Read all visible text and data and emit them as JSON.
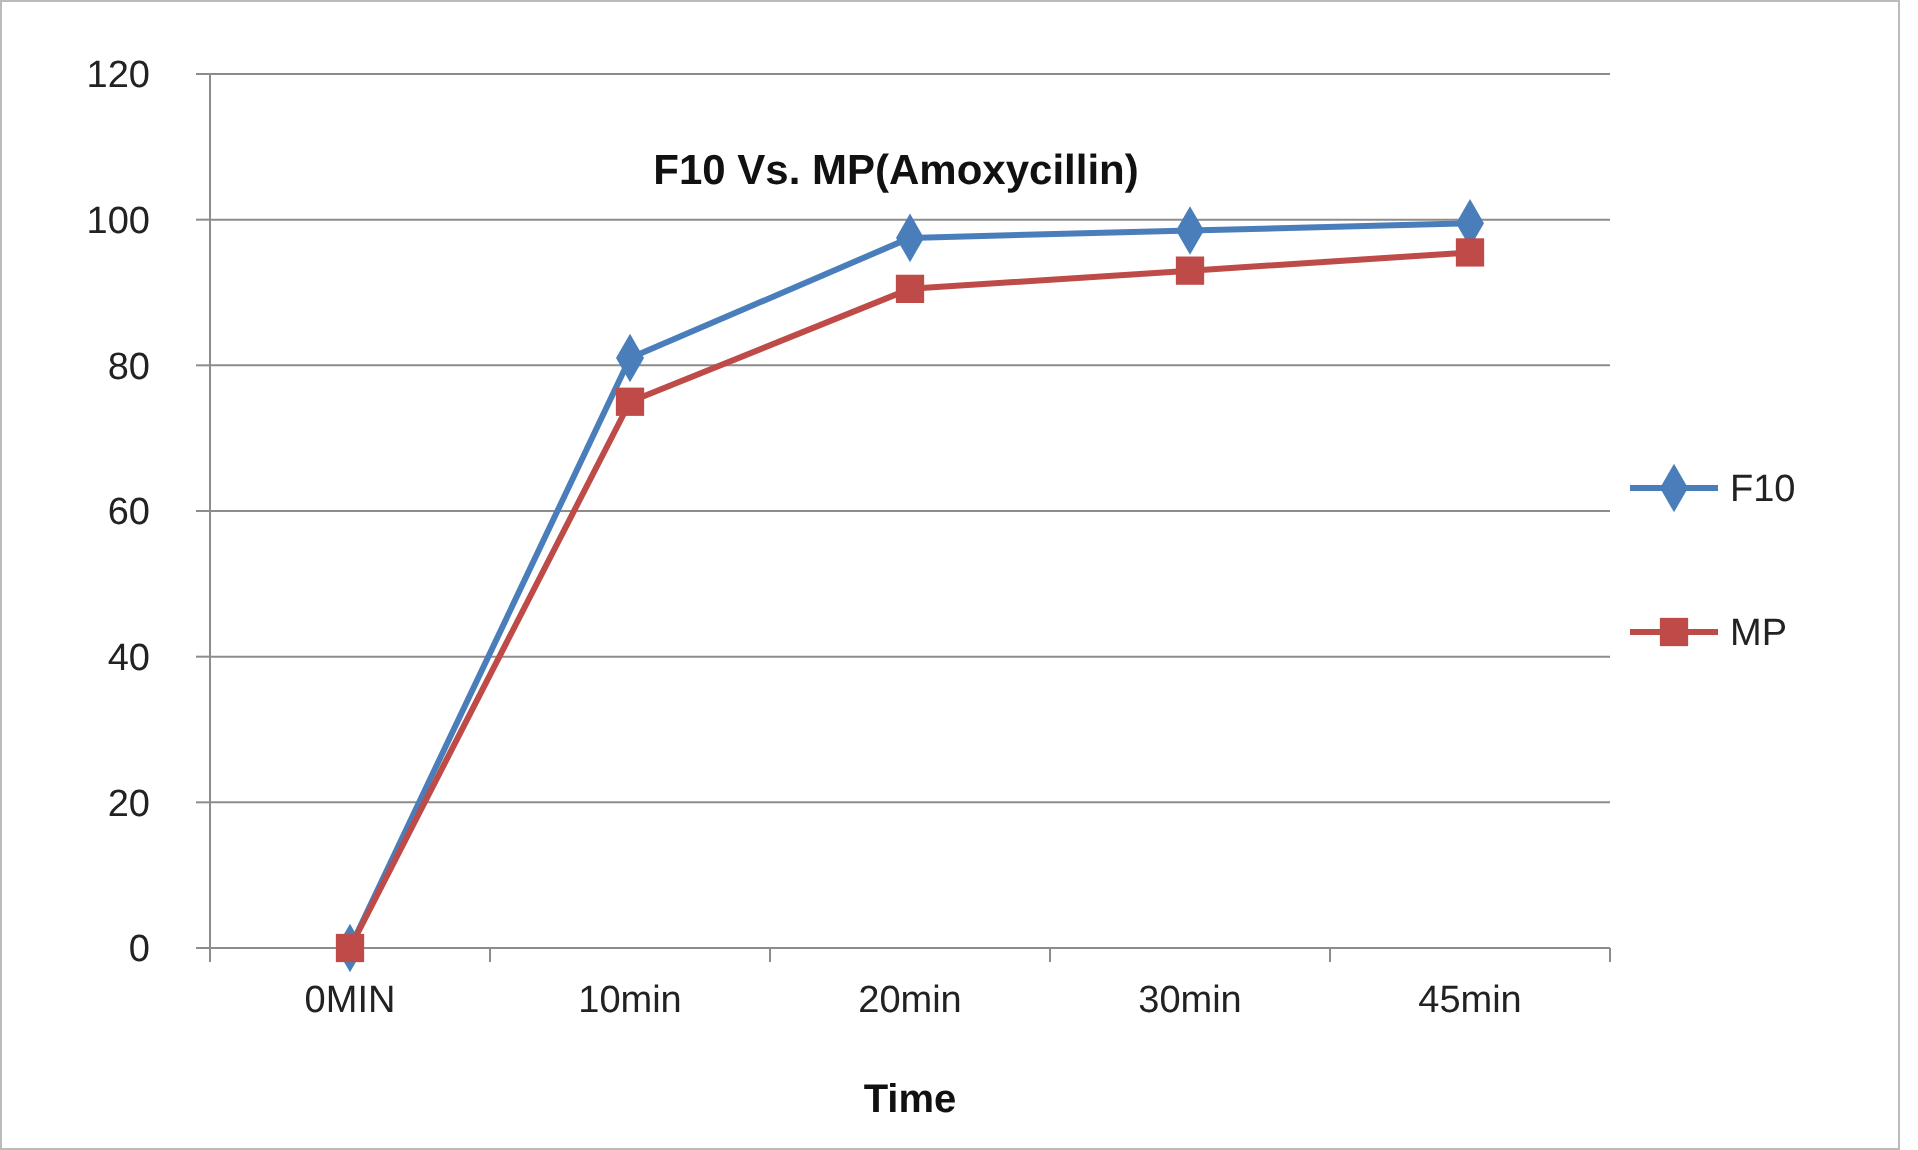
{
  "chart_data": {
    "type": "line",
    "title": "F10 Vs. MP(Amoxycillin)",
    "xlabel": "Time",
    "categories": [
      "0MIN",
      "10min",
      "20min",
      "30min",
      "45min"
    ],
    "series": [
      {
        "name": "F10",
        "color": "#4a7ebb",
        "marker": "diamond",
        "values": [
          0,
          81,
          97.5,
          98.5,
          99.5
        ]
      },
      {
        "name": "MP",
        "color": "#be4b48",
        "marker": "square",
        "values": [
          0,
          75,
          90.5,
          93,
          95.5
        ]
      }
    ],
    "ylim": [
      0,
      120
    ],
    "yticks": [
      0,
      20,
      40,
      60,
      80,
      100,
      120
    ],
    "grid": "y",
    "legend": "right"
  }
}
